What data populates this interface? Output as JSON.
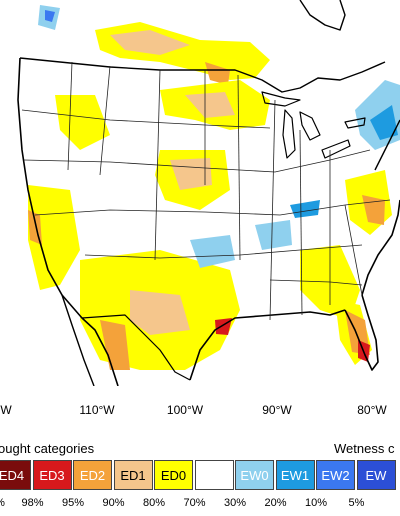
{
  "longitude_labels": [
    "W",
    "110°W",
    "100°W",
    "90°W",
    "80°W"
  ],
  "legend": {
    "drought_title": "ought categories",
    "wetness_title": "Wetness c",
    "categories": [
      {
        "label": "ED4",
        "color": "#7a0c0c",
        "text_color": "#ffffff"
      },
      {
        "label": "ED3",
        "color": "#d7191c",
        "text_color": "#ffffff"
      },
      {
        "label": "ED2",
        "color": "#f4a23a",
        "text_color": "#ffffff"
      },
      {
        "label": "ED1",
        "color": "#f5c68c",
        "text_color": "#000000"
      },
      {
        "label": "ED0",
        "color": "#ffff00",
        "text_color": "#000000"
      },
      {
        "label": "",
        "color": "#ffffff",
        "text_color": "#000000"
      },
      {
        "label": "EW0",
        "color": "#8fd0ee",
        "text_color": "#ffffff"
      },
      {
        "label": "EW1",
        "color": "#1e9be0",
        "text_color": "#ffffff"
      },
      {
        "label": "EW2",
        "color": "#3b78f0",
        "text_color": "#ffffff"
      },
      {
        "label": "EW",
        "color": "#2c4fd6",
        "text_color": "#ffffff"
      }
    ],
    "percentiles": [
      "%",
      "98%",
      "95%",
      "90%",
      "80%",
      "70%",
      "30%",
      "20%",
      "10%",
      "5%"
    ]
  },
  "colors": {
    "ocean": "#ffffff",
    "land": "#ffffff",
    "boundary": "#000000",
    "state_line": "#222222"
  }
}
